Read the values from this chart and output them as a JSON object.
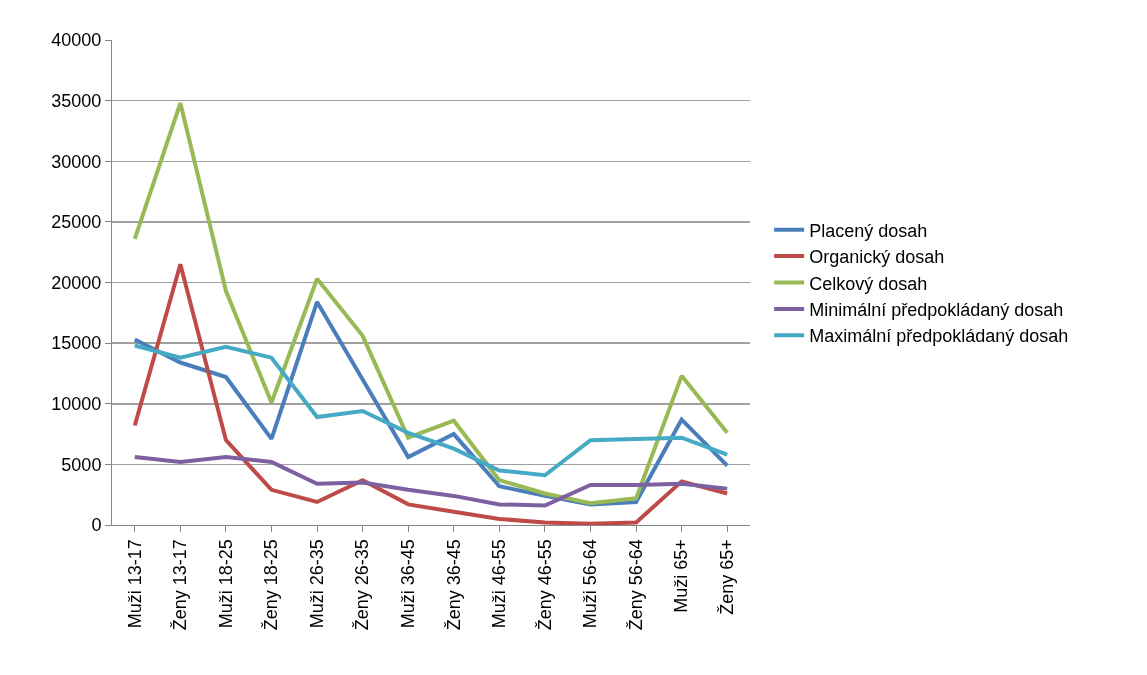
{
  "chart_data": {
    "type": "line",
    "categories": [
      "Muži 13-17",
      "Ženy 13-17",
      "Muži 18-25",
      "Ženy 18-25",
      "Muži 26-35",
      "Ženy 26-35",
      "Muži 36-45",
      "Ženy 36-45",
      "Muži 46-55",
      "Ženy 46-55",
      "Muži 56-64",
      "Ženy 56-64",
      "Muži 65+",
      "Ženy 65+"
    ],
    "series": [
      {
        "name": "Placený dosah",
        "color": "#4a7ebb",
        "values": [
          15300,
          13400,
          12200,
          7100,
          18400,
          12000,
          5600,
          7500,
          3200,
          2400,
          1700,
          1900,
          8700,
          4900
        ]
      },
      {
        "name": "Organický dosah",
        "color": "#be4b48",
        "values": [
          8200,
          21500,
          7000,
          2900,
          1900,
          3700,
          1700,
          1100,
          500,
          200,
          100,
          200,
          3600,
          2600
        ]
      },
      {
        "name": "Celkový dosah",
        "color": "#98b954",
        "values": [
          23600,
          34800,
          19300,
          10100,
          20300,
          15600,
          7200,
          8600,
          3700,
          2600,
          1800,
          2200,
          12300,
          7600
        ]
      },
      {
        "name": "Minimální předpokládaný dosah",
        "color": "#7d60a0",
        "values": [
          5600,
          5200,
          5600,
          5200,
          3400,
          3500,
          2900,
          2400,
          1700,
          1600,
          3300,
          3300,
          3400,
          3000
        ]
      },
      {
        "name": "Maximální předpokládaný dosah",
        "color": "#46aac5",
        "values": [
          14800,
          13800,
          14700,
          13800,
          8900,
          9400,
          7600,
          6300,
          4500,
          4100,
          7000,
          7100,
          7200,
          5800
        ]
      }
    ],
    "ylim": [
      0,
      40000
    ],
    "yticks": [
      0,
      5000,
      10000,
      15000,
      20000,
      25000,
      30000,
      35000,
      40000
    ],
    "grid": "y",
    "legend": "right",
    "marker": "none",
    "line_style": "solid"
  }
}
